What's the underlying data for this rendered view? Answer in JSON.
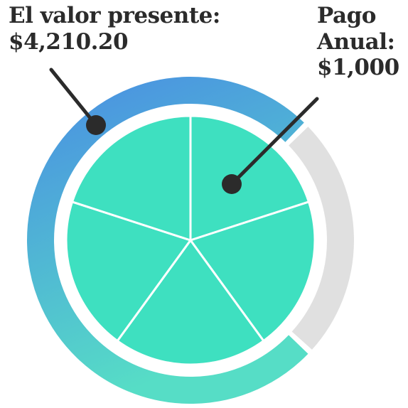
{
  "present_value_label": {
    "line1": "El valor presente:",
    "line2": "$4,210.20"
  },
  "annual_payment_label": {
    "line1": "Pago",
    "line2": "Anual:",
    "line3": "$1,000"
  },
  "pie": {
    "segments": 5,
    "color": "#3ee0c0"
  },
  "ring": {
    "present_value_gradient_start": "#4a90e2",
    "present_value_gradient_end": "#56ddc6",
    "remainder_color": "#e0e0e0"
  },
  "pointer_color": "#2b2b2b"
}
